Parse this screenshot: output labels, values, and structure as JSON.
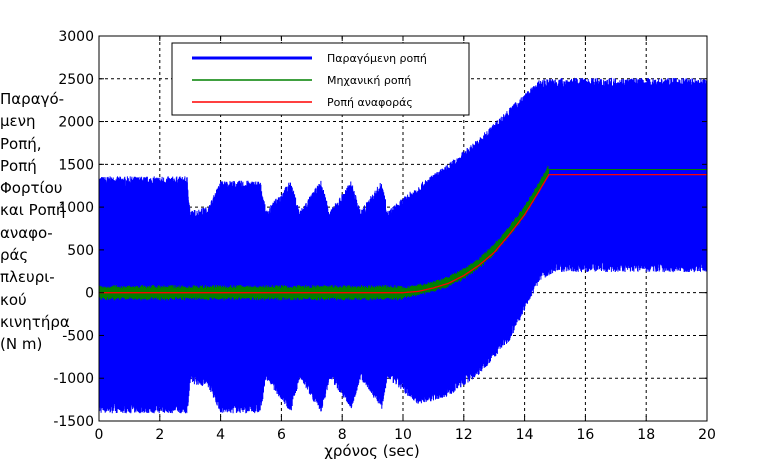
{
  "chart_data": {
    "type": "line",
    "title": "",
    "xlabel": "χρόνος (sec)",
    "ylabel_lines": [
      "Παραγό-",
      "μενη",
      "Ροπή,",
      "Ροπή",
      "Φορτίου",
      "και Ροπή",
      "αναφο-",
      "ράς",
      "πλευρι-",
      "κού",
      "κινητήρα",
      "(N m)"
    ],
    "xlim": [
      0,
      20
    ],
    "ylim": [
      -1500,
      3000
    ],
    "xticks": [
      "0",
      "2",
      "4",
      "6",
      "8",
      "10",
      "12",
      "14",
      "16",
      "18",
      "20"
    ],
    "yticks": [
      "-1500",
      "-1000",
      "-500",
      "0",
      "500",
      "1000",
      "1500",
      "2000",
      "2500",
      "3000"
    ],
    "grid": true,
    "legend_position": "top-left",
    "series": [
      {
        "name": "Παραγόμενη ροπή",
        "color": "#0000ff",
        "style": "oscillating band",
        "envelope_time": [
          0,
          2.9,
          3.0,
          3.6,
          4.0,
          5.3,
          5.5,
          6.3,
          6.6,
          7.3,
          7.6,
          8.3,
          8.6,
          9.3,
          9.5,
          10.5,
          11.5,
          12.5,
          13.5,
          14.5,
          15.0,
          20
        ],
        "envelope_upper": [
          1300,
          1300,
          900,
          950,
          1250,
          1250,
          900,
          1250,
          900,
          1250,
          900,
          1250,
          900,
          1250,
          900,
          1200,
          1450,
          1750,
          2100,
          2430,
          2450,
          2450
        ],
        "envelope_lower": [
          -1350,
          -1350,
          -1000,
          -1050,
          -1350,
          -1350,
          -950,
          -1350,
          -950,
          -1350,
          -950,
          -1300,
          -950,
          -1300,
          -950,
          -1250,
          -1150,
          -900,
          -500,
          200,
          300,
          300
        ]
      },
      {
        "name": "Μηχανική ροπή",
        "color": "#008000",
        "style": "line",
        "time": [
          0,
          10,
          10.5,
          11,
          11.5,
          12,
          12.5,
          13,
          13.5,
          14,
          14.5,
          14.8,
          20
        ],
        "value": [
          0,
          0,
          30,
          70,
          130,
          220,
          340,
          510,
          720,
          950,
          1250,
          1440,
          1440
        ]
      },
      {
        "name": "Ροπή αναφοράς",
        "color": "#ff0000",
        "style": "line",
        "time": [
          0,
          10,
          10.5,
          11,
          11.5,
          12,
          12.5,
          13,
          13.5,
          14,
          14.5,
          14.8,
          20
        ],
        "value": [
          0,
          0,
          15,
          55,
          110,
          200,
          320,
          470,
          680,
          910,
          1200,
          1380,
          1380
        ]
      }
    ]
  }
}
